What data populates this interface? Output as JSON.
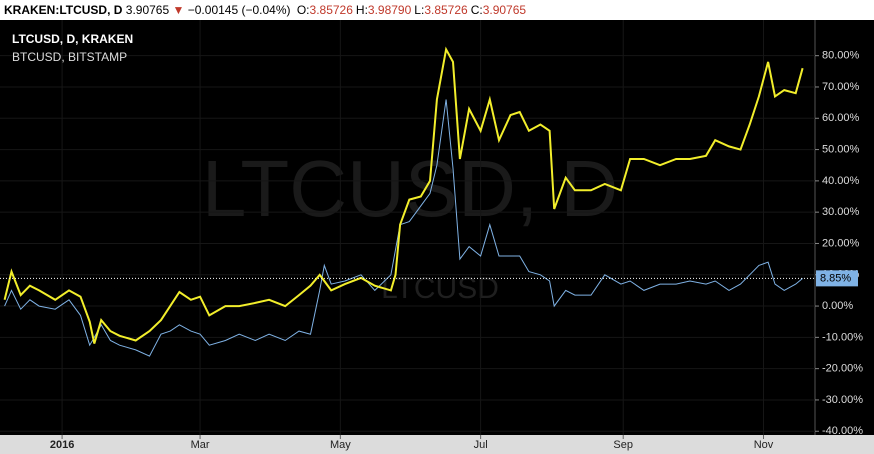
{
  "header": {
    "symbol": "KRAKEN:LTCUSD, D",
    "price": "3.90765",
    "change": "−0.00145 (−0.04%)",
    "ohlc": [
      {
        "label": "O:",
        "value": "3.85726"
      },
      {
        "label": "H:",
        "value": "3.98790"
      },
      {
        "label": "L:",
        "value": "3.85726"
      },
      {
        "label": "C:",
        "value": "3.90765"
      }
    ]
  },
  "chart_data": {
    "type": "line",
    "watermark": "LTCUSD, D",
    "watermark_small": "LTCUSD",
    "x": [
      -25,
      -22,
      -18,
      -14,
      -10,
      -3,
      3,
      8,
      12,
      14,
      17,
      21,
      25,
      32,
      38,
      43,
      47,
      51,
      56,
      60,
      64,
      71,
      77,
      84,
      90,
      97,
      103,
      108,
      112,
      114,
      117,
      123,
      130,
      136,
      143,
      145,
      147,
      151,
      156,
      160,
      163,
      167,
      170,
      173,
      177,
      182,
      186,
      190,
      195,
      199,
      203,
      208,
      212,
      214,
      219,
      223,
      230,
      236,
      243,
      247,
      253,
      260,
      267,
      273,
      280,
      284,
      290,
      295,
      299,
      303,
      307,
      310,
      314,
      319,
      322
    ],
    "series": [
      {
        "name": "LTCUSD, D, KRAKEN",
        "color": "#f2ee2b",
        "values": [
          2,
          11,
          3.5,
          6.5,
          5,
          2,
          5,
          3,
          -5,
          -12,
          -4.5,
          -8,
          -9.5,
          -11,
          -8,
          -4.5,
          0,
          4.5,
          2,
          3,
          -3,
          0,
          0,
          1,
          2,
          0,
          3.5,
          6.5,
          10,
          8,
          5,
          7,
          9,
          6.5,
          5,
          10,
          26,
          34,
          35,
          40,
          66,
          82,
          78,
          47,
          63,
          56,
          66,
          53,
          61,
          62,
          56,
          58,
          56,
          31,
          41,
          37,
          37,
          39,
          37,
          47,
          47,
          45,
          47,
          47,
          48,
          53,
          51,
          50,
          58,
          67,
          78,
          67,
          69,
          68,
          76
        ]
      },
      {
        "name": "BTCUSD, BITSTAMP",
        "color": "#7fb2e5",
        "values": [
          0,
          5,
          -1,
          2,
          0,
          -1,
          2,
          -3,
          -12.5,
          -10,
          -6,
          -11,
          -12.5,
          -14,
          -16,
          -9,
          -8,
          -6,
          -8,
          -9,
          -12.5,
          -11,
          -9,
          -11,
          -9,
          -11,
          -8,
          -9,
          5,
          13,
          7,
          8,
          10,
          5,
          10,
          18,
          26,
          27,
          32,
          36,
          45,
          66,
          44,
          15,
          19,
          16,
          26,
          16,
          16,
          16,
          11,
          10,
          8,
          0,
          5,
          3.5,
          3.5,
          10,
          7,
          8,
          5,
          7,
          7,
          8,
          7,
          8,
          5,
          7,
          10,
          13,
          14,
          7,
          5,
          7,
          8.85
        ]
      }
    ],
    "price_line": {
      "value": 8.85,
      "label": "8.85%"
    },
    "xlim": [
      -27,
      327.4
    ],
    "xticks": [
      {
        "value": 0,
        "label": "2016"
      },
      {
        "value": 60,
        "label": "Mar"
      },
      {
        "value": 121,
        "label": "May"
      },
      {
        "value": 182,
        "label": "Jul"
      },
      {
        "value": 244,
        "label": "Sep"
      },
      {
        "value": 305,
        "label": "Nov"
      }
    ],
    "ylim": [
      -41.2,
      91.4
    ],
    "yticks": [
      {
        "value": 80,
        "label": "80.00%"
      },
      {
        "value": 70,
        "label": "70.00%"
      },
      {
        "value": 60,
        "label": "60.00%"
      },
      {
        "value": 50,
        "label": "50.00%"
      },
      {
        "value": 40,
        "label": "40.00%"
      },
      {
        "value": 30,
        "label": "30.00%"
      },
      {
        "value": 20,
        "label": "20.00%"
      },
      {
        "value": 10,
        "label": "10.00%"
      },
      {
        "value": 0,
        "label": "0.00%"
      },
      {
        "value": -10,
        "label": "-10.00%"
      },
      {
        "value": -20,
        "label": "-20.00%"
      },
      {
        "value": -30,
        "label": "-30.00%"
      },
      {
        "value": -40,
        "label": "-40.00%"
      }
    ],
    "grid": true
  }
}
